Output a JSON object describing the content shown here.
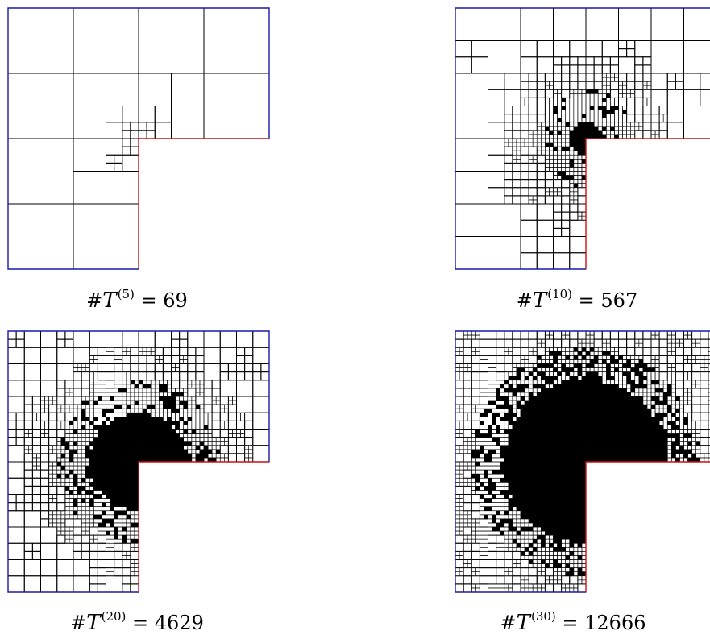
{
  "panels": [
    {
      "id": "mesh-5",
      "step": "5",
      "count": "69",
      "density": 0.0
    },
    {
      "id": "mesh-10",
      "step": "10",
      "count": "567",
      "density": 0.25
    },
    {
      "id": "mesh-20",
      "step": "20",
      "count": "4629",
      "density": 0.55
    },
    {
      "id": "mesh-30",
      "step": "30",
      "count": "12666",
      "density": 0.85
    }
  ],
  "caption": {
    "hash": "#",
    "symbol": "T",
    "equals": " = "
  },
  "colors": {
    "dirichlet_boundary": "#cc1111",
    "neumann_boundary": "#1a1aa6",
    "mesh_line": "#000000"
  }
}
